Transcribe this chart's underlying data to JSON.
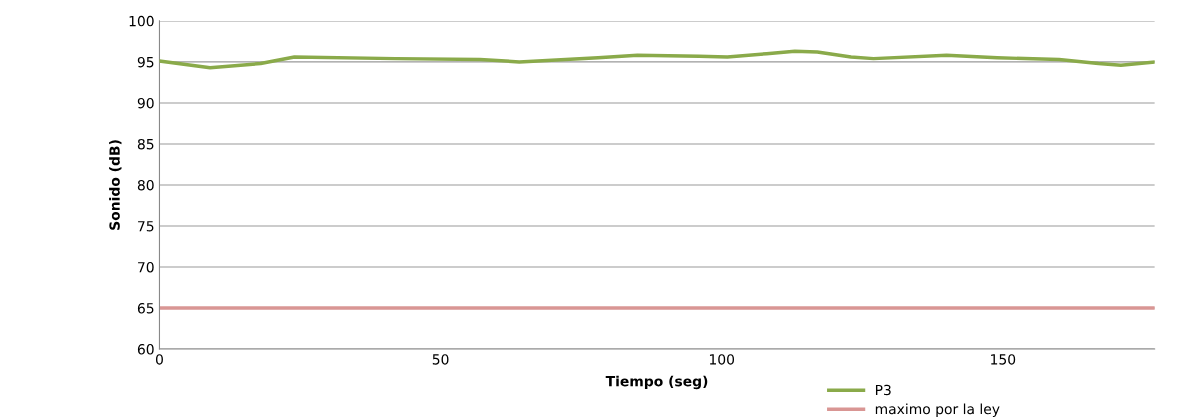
{
  "chart_data": {
    "type": "line",
    "xlabel": "Tiempo (seg)",
    "ylabel": "Sonido (dB)",
    "xlim": [
      0,
      177
    ],
    "xticks": [
      0,
      50,
      100,
      150
    ],
    "ylim": [
      60,
      100
    ],
    "yticks": [
      60,
      65,
      70,
      75,
      80,
      85,
      90,
      95,
      100
    ],
    "grid": "y",
    "legend": "bottom",
    "marker": "none",
    "line_style": "solid",
    "series": [
      {
        "name": "P3",
        "color": "#8aaa4a",
        "x": [
          0,
          9,
          18,
          24,
          42,
          57,
          64,
          78,
          85,
          96,
          101,
          108,
          113,
          117,
          123,
          127,
          140,
          149,
          160,
          167,
          171,
          177
        ],
        "values": [
          95.1,
          94.3,
          94.8,
          95.6,
          95.4,
          95.3,
          95.0,
          95.5,
          95.8,
          95.7,
          95.6,
          96.0,
          96.3,
          96.2,
          95.6,
          95.4,
          95.8,
          95.5,
          95.3,
          94.8,
          94.6,
          95.0
        ]
      },
      {
        "name": "maximo por la ley",
        "color": "#d99694",
        "x": [
          0,
          177
        ],
        "values": [
          65,
          65
        ]
      }
    ]
  }
}
